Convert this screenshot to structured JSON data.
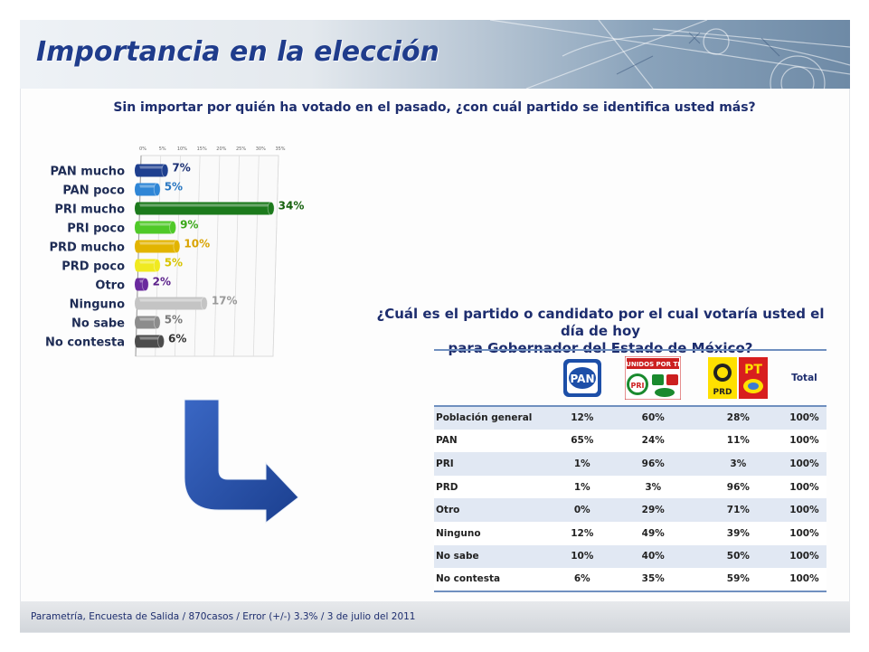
{
  "slide": {
    "title": "Importancia en la elección",
    "question1": "Sin importar por quién ha votado en el pasado, ¿con cuál partido se identifica usted más?",
    "question2_line1": "¿Cuál es el partido o candidato por el cual votaría usted el día de hoy",
    "question2_line2": "para Gobernador del Estado de México?",
    "footer": "Parametría, Encuesta de Salida /  870casos  /  Error (+/-) 3.3%  / 3 de julio del 2011"
  },
  "chart_data": {
    "type": "bar",
    "orientation": "horizontal",
    "categories": [
      "PAN mucho",
      "PAN poco",
      "PRI mucho",
      "PRI poco",
      "PRD mucho",
      "PRD poco",
      "Otro",
      "Ninguno",
      "No sabe",
      "No contesta"
    ],
    "values": [
      7,
      5,
      34,
      9,
      10,
      5,
      2,
      17,
      5,
      6
    ],
    "value_labels": [
      "7%",
      "5%",
      "34%",
      "9%",
      "10%",
      "5%",
      "2%",
      "17%",
      "5%",
      "6%"
    ],
    "xticks": [
      "0%",
      "5%",
      "10%",
      "15%",
      "20%",
      "25%",
      "30%",
      "35%"
    ],
    "xlim": [
      0,
      35
    ],
    "grid": true,
    "bar_colors": [
      "#1e3f8f",
      "#2f86d6",
      "#1c7a1c",
      "#4fc928",
      "#e2b400",
      "#f0ea20",
      "#6a2a9e",
      "#c4c4c4",
      "#8c8c8c",
      "#4c4c4c"
    ],
    "label_colors": [
      "#1a2f73",
      "#2a78c2",
      "#17620f",
      "#3aa81a",
      "#d9a300",
      "#d8c400",
      "#5a1f8a",
      "#9a9a9a",
      "#7a7a7a",
      "#333333"
    ]
  },
  "table": {
    "header_total": "Total",
    "party_logos": [
      "pan-logo",
      "pri-logo",
      "prd-pt-logo"
    ],
    "pan_logo_text": "PAN",
    "pri_logo_text": "PRI",
    "pri_coalition_text": "UNIDOS POR TI",
    "prd_logo_text": "PRD",
    "pt_logo_text": "PT",
    "rows": [
      {
        "label": "Población general",
        "pan": "12%",
        "pri": "60%",
        "prd": "28%",
        "total": "100%"
      },
      {
        "label": "PAN",
        "pan": "65%",
        "pri": "24%",
        "prd": "11%",
        "total": "100%"
      },
      {
        "label": "PRI",
        "pan": "1%",
        "pri": "96%",
        "prd": "3%",
        "total": "100%"
      },
      {
        "label": "PRD",
        "pan": "1%",
        "pri": "3%",
        "prd": "96%",
        "total": "100%"
      },
      {
        "label": "Otro",
        "pan": "0%",
        "pri": "29%",
        "prd": "71%",
        "total": "100%"
      },
      {
        "label": "Ninguno",
        "pan": "12%",
        "pri": "49%",
        "prd": "39%",
        "total": "100%"
      },
      {
        "label": "No sabe",
        "pan": "10%",
        "pri": "40%",
        "prd": "50%",
        "total": "100%"
      },
      {
        "label": "No contesta",
        "pan": "6%",
        "pri": "35%",
        "prd": "59%",
        "total": "100%"
      }
    ]
  }
}
